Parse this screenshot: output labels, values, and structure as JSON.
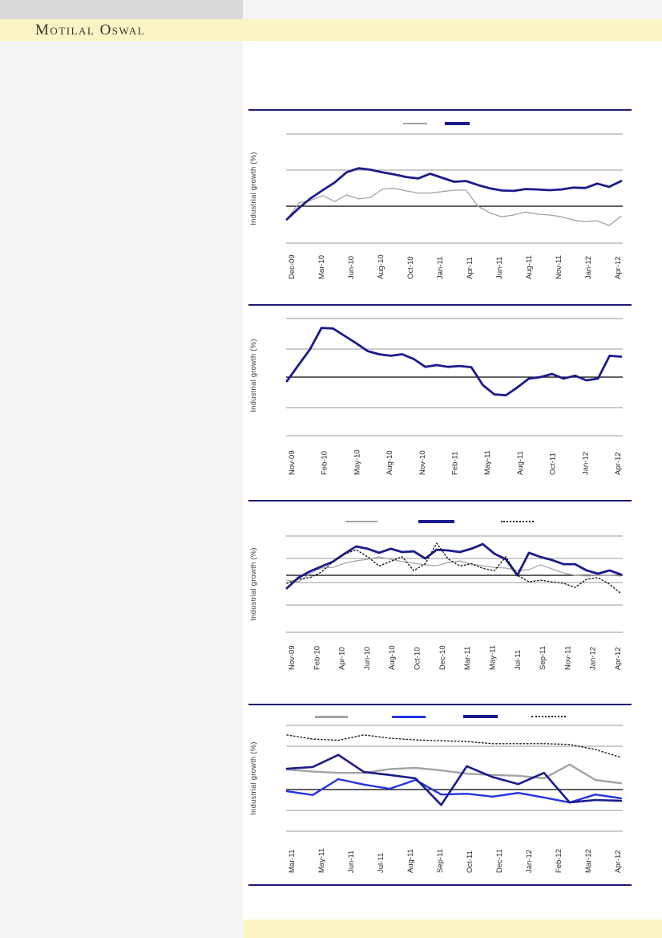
{
  "header": {
    "logo_text": "Motilal Oswal"
  },
  "colors": {
    "brand_band_yellow": "#fbf5c6",
    "left_panel_gray": "#f4f4f4",
    "top_bar_gray": "#d9d9d9",
    "rule_navy": "#1b1b75",
    "navy_line": "#1b1b8c",
    "gray_line": "#a3a3a3",
    "bright_blue_line": "#2633e0",
    "dotted_black_line": "#1a1a1a",
    "gridline_gray": "#9a9a9a",
    "zero_axis_black": "#000000"
  },
  "chart_data": [
    {
      "type": "line",
      "ylabel": "Industrial growth (%)",
      "ylim": [
        -10,
        20
      ],
      "gridline_values": [
        20,
        10,
        -10
      ],
      "zero_line": true,
      "legend_labels_visible": false,
      "x_labels": [
        "Dec-09",
        "Mar-10",
        "Jun-10",
        "Aug-10",
        "Oct-10",
        "Jan-11",
        "Apr-11",
        "Jun-11",
        "Aug-11",
        "Nov-11",
        "Jan-12",
        "Apr-12"
      ],
      "series": [
        {
          "name": "gray-line",
          "color": "#a3a3a3",
          "dash": false,
          "width": 1.3,
          "thickness": 2,
          "values": [
            -3.6,
            0.9,
            1.6,
            2.9,
            1.3,
            3.1,
            2.0,
            2.4,
            4.7,
            4.9,
            4.2,
            3.6,
            3.6,
            4.0,
            4.4,
            4.4,
            0.0,
            -1.8,
            -2.9,
            -2.4,
            -1.6,
            -2.2,
            -2.4,
            -2.9,
            -3.8,
            -4.2,
            -4.0,
            -5.3,
            -2.7
          ]
        },
        {
          "name": "navy-line",
          "color": "#1b1b8c",
          "dash": false,
          "width": 2.8,
          "thickness": 4,
          "values": [
            -3.6,
            -0.5,
            2.2,
            4.4,
            6.5,
            9.3,
            10.4,
            10.0,
            9.3,
            8.7,
            8.0,
            7.6,
            8.9,
            7.8,
            6.7,
            6.9,
            5.8,
            4.9,
            4.3,
            4.2,
            4.7,
            4.6,
            4.4,
            4.6,
            5.1,
            5.0,
            6.2,
            5.3,
            6.9
          ]
        }
      ]
    },
    {
      "type": "line",
      "ylabel": "Industrial growth (%)",
      "ylim": [
        -20,
        20
      ],
      "gridline_values": [
        20,
        10,
        -10,
        -20
      ],
      "zero_line": true,
      "legend_labels_visible": false,
      "x_labels": [
        "Nov-09",
        "Feb-10",
        "May-10",
        "Aug-10",
        "Nov-10",
        "Feb-11",
        "May-11",
        "Aug-11",
        "Oct-11",
        "Jan-12",
        "Apr-12"
      ],
      "series": [
        {
          "name": "navy-line",
          "color": "#1b1b8c",
          "dash": false,
          "width": 2.8,
          "thickness": 4,
          "values": [
            -1.4,
            4.1,
            9.5,
            16.8,
            16.6,
            14.1,
            11.6,
            8.9,
            7.8,
            7.3,
            7.8,
            6.2,
            3.5,
            4.1,
            3.5,
            3.8,
            3.4,
            -2.7,
            -5.9,
            -6.2,
            -3.5,
            -0.5,
            0.0,
            1.1,
            -0.5,
            0.5,
            -1.1,
            -0.5,
            7.3,
            7.0
          ]
        }
      ]
    },
    {
      "type": "line",
      "ylabel": "Industrial growth (%)",
      "ylim": [
        -13,
        17
      ],
      "gridline_values": [
        17,
        7,
        -3,
        -13
      ],
      "zero_line": true,
      "legend_labels_visible": false,
      "x_labels": [
        "Nov-09",
        "Feb-10",
        "Apr-10",
        "Jun-10",
        "Aug-10",
        "Oct-10",
        "Dec-10",
        "Mar-11",
        "May-11",
        "Jul-11",
        "Sep-11",
        "Nov-11",
        "Jan-12",
        "Apr-12"
      ],
      "series": [
        {
          "name": "gray-line",
          "color": "#a3a3a3",
          "dash": false,
          "width": 1.2,
          "thickness": 2,
          "values": [
            -2.1,
            -2.8,
            0.7,
            3.1,
            3.4,
            5.2,
            6.2,
            6.9,
            7.9,
            6.9,
            5.9,
            5.2,
            4.5,
            4.1,
            5.5,
            6.2,
            4.8,
            4.1,
            3.4,
            3.1,
            2.1,
            2.4,
            4.5,
            2.8,
            1.0,
            0.0,
            -0.3,
            0.0,
            0.0,
            -0.3
          ]
        },
        {
          "name": "navy-line",
          "color": "#1b1b8c",
          "dash": false,
          "width": 2.8,
          "thickness": 4,
          "values": [
            -5.5,
            -1.0,
            1.7,
            3.8,
            5.9,
            9.3,
            12.4,
            11.4,
            9.7,
            11.4,
            10.0,
            10.3,
            7.2,
            11.0,
            10.7,
            10.0,
            11.4,
            13.4,
            9.3,
            6.9,
            0.0,
            9.7,
            7.9,
            6.6,
            4.8,
            4.8,
            2.1,
            0.7,
            2.1,
            0.3
          ]
        },
        {
          "name": "dotted-line",
          "color": "#1a1a1a",
          "dash": true,
          "width": 1.4,
          "thickness": 2,
          "values": [
            -3.4,
            -1.7,
            -1.0,
            1.4,
            5.9,
            9.0,
            11.0,
            8.0,
            4.0,
            6.0,
            8.0,
            2.0,
            5.0,
            13.8,
            7.0,
            4.0,
            5.0,
            3.0,
            2.0,
            8.0,
            0.0,
            -2.8,
            -2.1,
            -2.8,
            -3.4,
            -5.2,
            -1.7,
            -1.0,
            -3.8,
            -7.9
          ]
        }
      ]
    },
    {
      "type": "line",
      "ylabel": "Industrial growth (%)",
      "ylim": [
        -10,
        15
      ],
      "gridline_values": [
        15,
        10,
        -5,
        -10
      ],
      "zero_line": true,
      "legend_labels_visible": false,
      "x_labels": [
        "Mar-11",
        "May-11",
        "Jun-11",
        "Jul-11",
        "Aug-11",
        "Sep-11",
        "Oct-11",
        "Dec-11",
        "Jan-12",
        "Feb-12",
        "Mar-12",
        "Apr-12"
      ],
      "series": [
        {
          "name": "gray-line",
          "color": "#a3a3a3",
          "dash": false,
          "width": 2.4,
          "thickness": 3,
          "values": [
            4.8,
            4.3,
            4.0,
            4.0,
            4.9,
            5.2,
            4.6,
            3.8,
            3.5,
            3.3,
            2.7,
            6.0,
            2.3,
            1.5
          ]
        },
        {
          "name": "blue-line",
          "color": "#2633e0",
          "dash": false,
          "width": 2.4,
          "thickness": 3,
          "values": [
            -0.4,
            -1.3,
            2.5,
            1.2,
            0.2,
            2.3,
            -1.2,
            -1.0,
            -1.7,
            -0.8,
            -1.9,
            -3.1,
            -1.2,
            -2.1
          ]
        },
        {
          "name": "navy-line",
          "color": "#1b1b8c",
          "dash": false,
          "width": 2.6,
          "thickness": 4,
          "values": [
            5.0,
            5.4,
            8.3,
            4.2,
            3.5,
            2.7,
            -3.7,
            5.6,
            3.0,
            1.3,
            4.0,
            -3.1,
            -2.5,
            -2.7
          ]
        },
        {
          "name": "dotted-line",
          "color": "#1a1a1a",
          "dash": true,
          "width": 1.4,
          "thickness": 2,
          "values": [
            13.1,
            12.1,
            11.8,
            13.1,
            12.3,
            11.9,
            11.7,
            11.5,
            11.0,
            11.0,
            11.0,
            10.8,
            9.6,
            7.7
          ]
        }
      ]
    }
  ]
}
